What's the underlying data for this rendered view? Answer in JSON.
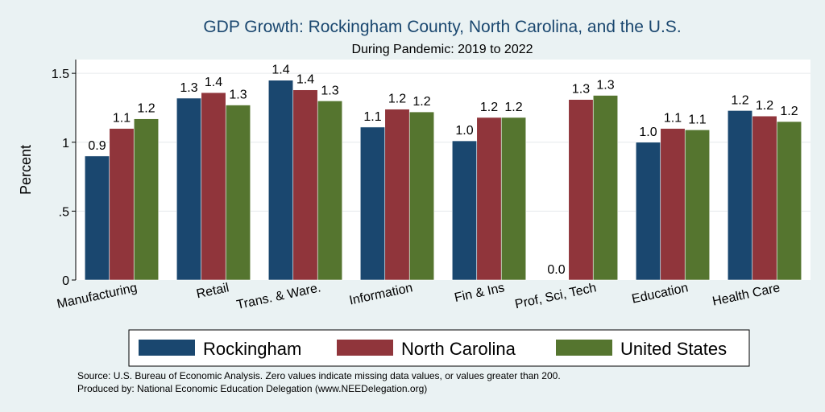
{
  "chart_data": {
    "type": "bar",
    "title": "GDP Growth: Rockingham County, North Carolina, and the U.S.",
    "subtitle": "During Pandemic: 2019 to 2022",
    "ylabel": "Percent",
    "ylim": [
      0,
      1.6
    ],
    "yticks": [
      {
        "value": 0,
        "label": "0"
      },
      {
        "value": 0.5,
        "label": ".5"
      },
      {
        "value": 1,
        "label": "1"
      },
      {
        "value": 1.5,
        "label": "1.5"
      }
    ],
    "grid": true,
    "categories": [
      "Manufacturing",
      "Retail",
      "Trans. & Ware.",
      "Information",
      "Fin & Ins",
      "Prof, Sci, Tech",
      "Education",
      "Health Care"
    ],
    "series": [
      {
        "name": "Rockingham",
        "color": "#1a476f",
        "values": [
          0.9,
          1.32,
          1.45,
          1.11,
          1.01,
          0.0,
          1.0,
          1.23
        ],
        "labels": [
          "0.9",
          "1.3",
          "1.4",
          "1.1",
          "1.0",
          "0.0",
          "1.0",
          "1.2"
        ]
      },
      {
        "name": "North Carolina",
        "color": "#90353b",
        "values": [
          1.1,
          1.36,
          1.38,
          1.24,
          1.18,
          1.31,
          1.1,
          1.19
        ],
        "labels": [
          "1.1",
          "1.4",
          "1.4",
          "1.2",
          "1.2",
          "1.3",
          "1.1",
          "1.2"
        ]
      },
      {
        "name": "United States",
        "color": "#55752f",
        "values": [
          1.17,
          1.27,
          1.3,
          1.22,
          1.18,
          1.34,
          1.09,
          1.15
        ],
        "labels": [
          "1.2",
          "1.3",
          "1.3",
          "1.2",
          "1.2",
          "1.3",
          "1.1",
          "1.2"
        ]
      }
    ],
    "legend_position": "bottom"
  },
  "footnotes": {
    "source": "Source: U.S. Bureau of Economic Analysis. Zero values indicate missing data values, or values greater than 200.",
    "produced": "Produced by: National Economic Education Delegation (www.NEEDelegation.org)"
  }
}
